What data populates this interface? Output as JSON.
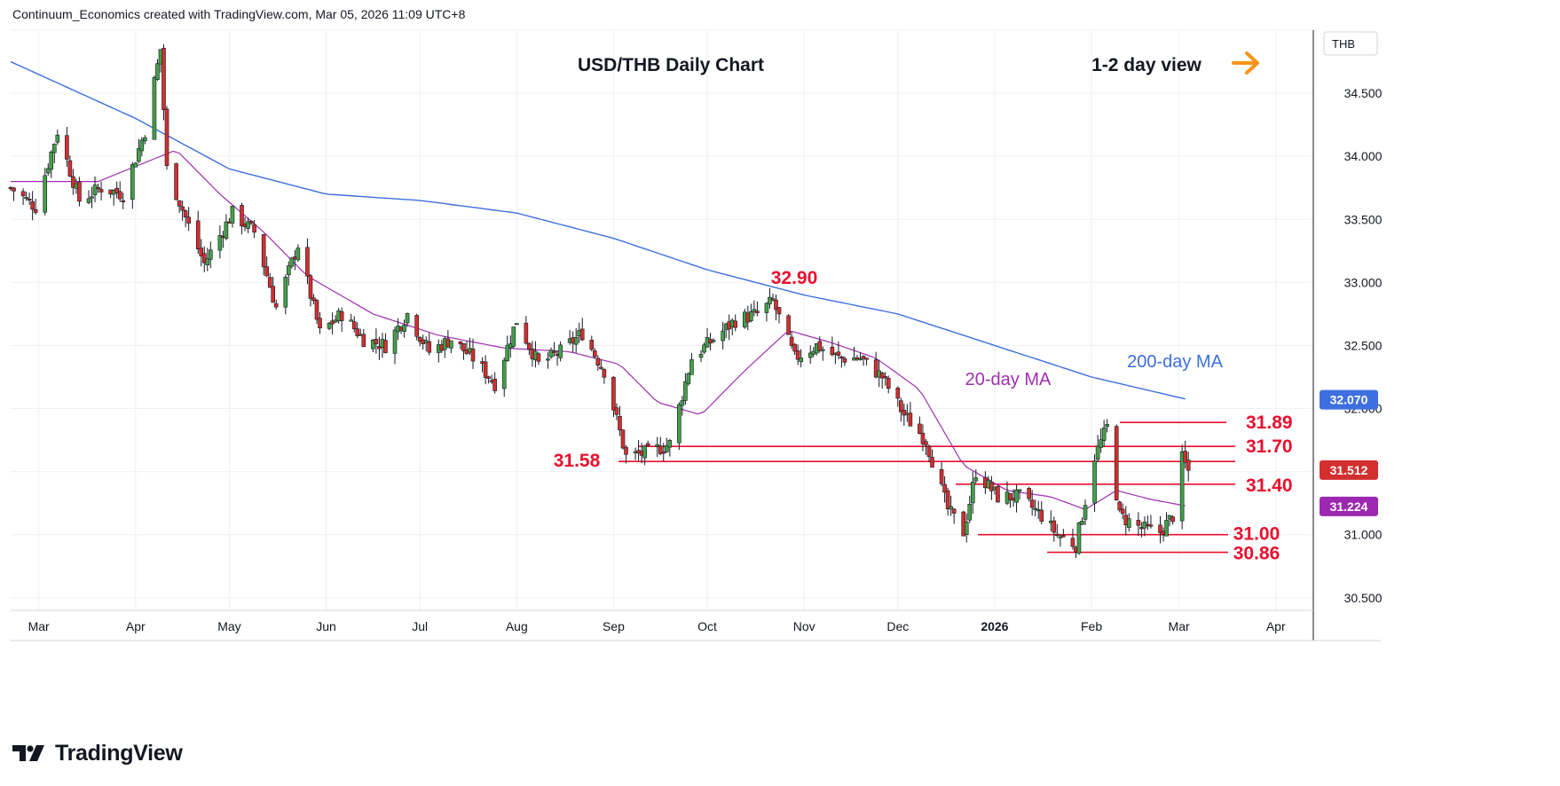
{
  "header": {
    "attribution": "Continuum_Economics created with TradingView.com, Mar 05, 2026 11:09 UTC+8"
  },
  "footer": {
    "brand": "TradingView",
    "logo_icon": "tradingview-logo-icon"
  },
  "colors": {
    "up": "#43a047",
    "down": "#d32f2f",
    "ma200": "#3d6fe0",
    "ma20": "#a02fb0",
    "level": "#e8102e",
    "arrow": "#f7931a",
    "grid": "#eef0f4"
  },
  "chart_data": {
    "type": "candlestick",
    "title": "USD/THB Daily Chart",
    "view_label": "1-2 day view",
    "view_icon": "arrow-right-icon",
    "currency": "THB",
    "ylim": [
      30.4,
      35.0
    ],
    "y_ticks": [
      "34.500",
      "34.000",
      "33.500",
      "33.000",
      "32.500",
      "32.000",
      "31.000",
      "30.500"
    ],
    "x_labels": [
      "Mar",
      "Apr",
      "May",
      "Jun",
      "Jul",
      "Aug",
      "Sep",
      "Oct",
      "Nov",
      "Dec",
      "2026",
      "Feb",
      "Mar",
      "Apr"
    ],
    "price_badges": [
      {
        "value": "32.070",
        "series": "200-day MA"
      },
      {
        "value": "31.512",
        "series": "Last price"
      },
      {
        "value": "31.224",
        "series": "20-day MA"
      }
    ],
    "levels": [
      {
        "label": "31.89",
        "value": 31.89
      },
      {
        "label": "31.70",
        "value": 31.7
      },
      {
        "label": "31.58",
        "value": 31.58
      },
      {
        "label": "31.40",
        "value": 31.4
      },
      {
        "label": "31.00",
        "value": 31.0
      },
      {
        "label": "30.86",
        "value": 30.86
      }
    ],
    "peak_annotation": {
      "label": "32.90",
      "value": 32.9
    },
    "ma_labels": {
      "ma200": "200-day MA",
      "ma20": "20-day MA"
    },
    "close_anchors": [
      [
        "2025-02-20",
        33.75
      ],
      [
        "2025-02-28",
        33.6
      ],
      [
        "2025-03-07",
        34.2
      ],
      [
        "2025-03-14",
        33.65
      ],
      [
        "2025-03-21",
        33.75
      ],
      [
        "2025-03-28",
        33.7
      ],
      [
        "2025-04-04",
        34.2
      ],
      [
        "2025-04-09",
        34.85
      ],
      [
        "2025-04-11",
        33.9
      ],
      [
        "2025-04-18",
        33.45
      ],
      [
        "2025-04-23",
        33.15
      ],
      [
        "2025-05-02",
        33.55
      ],
      [
        "2025-05-09",
        33.4
      ],
      [
        "2025-05-16",
        32.8
      ],
      [
        "2025-05-23",
        33.3
      ],
      [
        "2025-05-30",
        32.6
      ],
      [
        "2025-06-06",
        32.75
      ],
      [
        "2025-06-13",
        32.55
      ],
      [
        "2025-06-20",
        32.5
      ],
      [
        "2025-06-27",
        32.75
      ],
      [
        "2025-07-04",
        32.45
      ],
      [
        "2025-07-11",
        32.55
      ],
      [
        "2025-07-18",
        32.4
      ],
      [
        "2025-07-25",
        32.2
      ],
      [
        "2025-08-01",
        32.7
      ],
      [
        "2025-08-08",
        32.35
      ],
      [
        "2025-08-15",
        32.45
      ],
      [
        "2025-08-22",
        32.6
      ],
      [
        "2025-08-29",
        32.3
      ],
      [
        "2025-09-05",
        31.62
      ],
      [
        "2025-09-12",
        31.65
      ],
      [
        "2025-09-19",
        31.72
      ],
      [
        "2025-09-26",
        32.4
      ],
      [
        "2025-10-03",
        32.55
      ],
      [
        "2025-10-10",
        32.7
      ],
      [
        "2025-10-17",
        32.75
      ],
      [
        "2025-10-22",
        32.85
      ],
      [
        "2025-10-29",
        32.4
      ],
      [
        "2025-11-05",
        32.5
      ],
      [
        "2025-11-12",
        32.4
      ],
      [
        "2025-11-19",
        32.4
      ],
      [
        "2025-11-26",
        32.25
      ],
      [
        "2025-12-03",
        31.95
      ],
      [
        "2025-12-10",
        31.75
      ],
      [
        "2025-12-17",
        31.2
      ],
      [
        "2025-12-22",
        31.02
      ],
      [
        "2025-12-26",
        31.5
      ],
      [
        "2026-01-02",
        31.3
      ],
      [
        "2026-01-09",
        31.3
      ],
      [
        "2026-01-16",
        31.15
      ],
      [
        "2026-01-21",
        31.0
      ],
      [
        "2026-01-27",
        30.92
      ],
      [
        "2026-02-02",
        31.62
      ],
      [
        "2026-02-06",
        31.85
      ],
      [
        "2026-02-10",
        31.15
      ],
      [
        "2026-02-17",
        31.05
      ],
      [
        "2026-02-23",
        31.02
      ],
      [
        "2026-02-27",
        31.15
      ],
      [
        "2026-03-02",
        31.6
      ],
      [
        "2026-03-04",
        31.51
      ]
    ],
    "ma20_anchors": [
      [
        "2025-02-20",
        33.8
      ],
      [
        "2025-03-20",
        33.8
      ],
      [
        "2025-04-04",
        33.95
      ],
      [
        "2025-04-14",
        34.05
      ],
      [
        "2025-04-28",
        33.7
      ],
      [
        "2025-05-12",
        33.4
      ],
      [
        "2025-05-26",
        33.05
      ],
      [
        "2025-06-16",
        32.75
      ],
      [
        "2025-07-07",
        32.58
      ],
      [
        "2025-07-28",
        32.48
      ],
      [
        "2025-08-18",
        32.45
      ],
      [
        "2025-09-03",
        32.35
      ],
      [
        "2025-09-15",
        32.05
      ],
      [
        "2025-09-29",
        31.95
      ],
      [
        "2025-10-13",
        32.3
      ],
      [
        "2025-10-27",
        32.62
      ],
      [
        "2025-11-10",
        32.52
      ],
      [
        "2025-11-24",
        32.4
      ],
      [
        "2025-12-08",
        32.15
      ],
      [
        "2025-12-22",
        31.55
      ],
      [
        "2026-01-05",
        31.35
      ],
      [
        "2026-01-19",
        31.3
      ],
      [
        "2026-01-30",
        31.2
      ],
      [
        "2026-02-09",
        31.35
      ],
      [
        "2026-02-20",
        31.28
      ],
      [
        "2026-03-04",
        31.224
      ]
    ],
    "ma200_anchors": [
      [
        "2025-02-20",
        34.75
      ],
      [
        "2025-04-01",
        34.3
      ],
      [
        "2025-05-01",
        33.9
      ],
      [
        "2025-06-01",
        33.7
      ],
      [
        "2025-07-01",
        33.65
      ],
      [
        "2025-08-01",
        33.55
      ],
      [
        "2025-09-01",
        33.35
      ],
      [
        "2025-10-01",
        33.1
      ],
      [
        "2025-11-01",
        32.9
      ],
      [
        "2025-12-01",
        32.75
      ],
      [
        "2026-01-01",
        32.5
      ],
      [
        "2026-02-01",
        32.25
      ],
      [
        "2026-03-04",
        32.07
      ]
    ]
  }
}
